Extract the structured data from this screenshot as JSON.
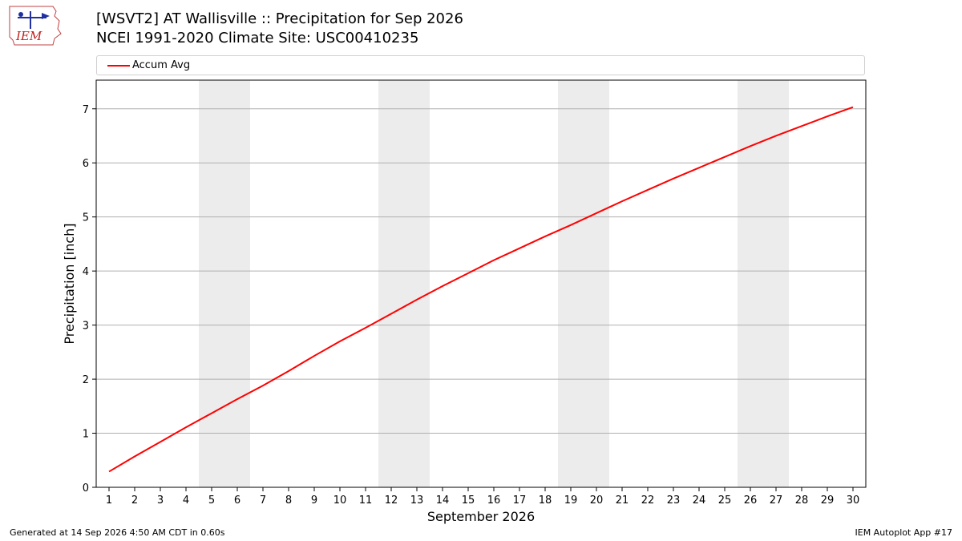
{
  "header": {
    "title_line1": "[WSVT2] AT Wallisville :: Precipitation for Sep 2026",
    "title_line2": "NCEI 1991-2020 Climate Site: USC00410235"
  },
  "logo": {
    "text": "IEM"
  },
  "footer": {
    "left": "Generated at 14 Sep 2026 4:50 AM CDT in 0.60s",
    "right": "IEM Autoplot App #17"
  },
  "chart_data": {
    "type": "line",
    "xlabel": "September 2026",
    "ylabel": "Precipitation [inch]",
    "x": [
      1,
      2,
      3,
      4,
      5,
      6,
      7,
      8,
      9,
      10,
      11,
      12,
      13,
      14,
      15,
      16,
      17,
      18,
      19,
      20,
      21,
      22,
      23,
      24,
      25,
      26,
      27,
      28,
      29,
      30
    ],
    "series": [
      {
        "name": "Accum Avg",
        "color": "#ff0000",
        "values": [
          0.29,
          0.57,
          0.84,
          1.11,
          1.37,
          1.63,
          1.88,
          2.15,
          2.43,
          2.7,
          2.95,
          3.21,
          3.47,
          3.72,
          3.96,
          4.2,
          4.42,
          4.64,
          4.85,
          5.07,
          5.29,
          5.5,
          5.71,
          5.91,
          6.11,
          6.31,
          6.5,
          6.68,
          6.86,
          7.03
        ]
      }
    ],
    "xlim": [
      0.5,
      30.5
    ],
    "ylim": [
      0,
      7.53
    ],
    "yticks": [
      0,
      1,
      2,
      3,
      4,
      5,
      6,
      7
    ],
    "shaded_weekends": [
      [
        5,
        6
      ],
      [
        12,
        13
      ],
      [
        19,
        20
      ],
      [
        26,
        27
      ]
    ],
    "grid": "horizontal",
    "legend_position": "top"
  }
}
